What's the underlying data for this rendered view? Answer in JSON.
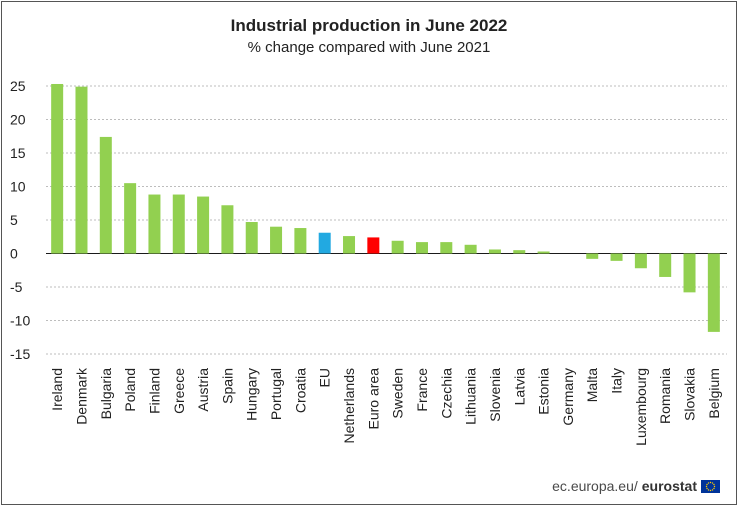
{
  "chart_data": {
    "type": "bar",
    "title": "Industrial production in June 2022",
    "subtitle": "% change compared with June 2021",
    "xlabel": "",
    "ylabel": "",
    "ylim": [
      -15,
      25
    ],
    "yticks": [
      25,
      20,
      15,
      10,
      5,
      0,
      -5,
      -10,
      -15
    ],
    "categories": [
      "Ireland",
      "Denmark",
      "Bulgaria",
      "Poland",
      "Finland",
      "Greece",
      "Austria",
      "Spain",
      "Hungary",
      "Portugal",
      "Croatia",
      "EU",
      "Netherlands",
      "Euro area",
      "Sweden",
      "France",
      "Czechia",
      "Lithuania",
      "Slovenia",
      "Latvia",
      "Estonia",
      "Germany",
      "Malta",
      "Italy",
      "Luxembourg",
      "Romania",
      "Slovakia",
      "Belgium"
    ],
    "values": [
      25.3,
      24.9,
      17.4,
      10.5,
      8.8,
      8.8,
      8.5,
      7.2,
      4.7,
      4.0,
      3.8,
      3.1,
      2.6,
      2.4,
      1.9,
      1.7,
      1.7,
      1.3,
      0.6,
      0.5,
      0.3,
      0.0,
      -0.8,
      -1.1,
      -2.2,
      -3.5,
      -5.8,
      -11.7
    ],
    "grid": true,
    "colors": {
      "default": "#92d050",
      "EU": "#22a9e1",
      "Euro area": "#ff0000"
    }
  },
  "footer": {
    "site": "ec.europa.eu/",
    "brand": "eurostat"
  }
}
